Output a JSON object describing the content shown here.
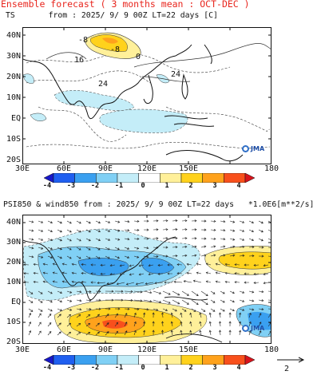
{
  "header": {
    "title": "Ensemble forecast ( 3 months mean : OCT-DEC )"
  },
  "panels": [
    {
      "title_var": "TS",
      "title_rest": "from : 2025/ 9/ 9 00Z LT=22 days  [C]",
      "y_ticks": [
        "40N",
        "30N",
        "20N",
        "10N",
        "EQ",
        "10S",
        "20S"
      ],
      "x_ticks": [
        "30E",
        "60E",
        "90E",
        "120E",
        "150E",
        "180"
      ],
      "contour_labels": [
        "-8",
        "-8",
        "16",
        "0",
        "24",
        "24"
      ],
      "logo": "JMA"
    },
    {
      "title_var": "PSI850 & wind850",
      "title_rest": "from : 2025/ 9/ 9 00Z LT=22 days",
      "units": "*1.0E6[m**2/s]",
      "y_ticks": [
        "40N",
        "30N",
        "20N",
        "10N",
        "EQ",
        "10S",
        "20S"
      ],
      "x_ticks": [
        "30E",
        "60E",
        "90E",
        "120E",
        "150E",
        "180"
      ],
      "logo": "JMA",
      "vector_ref_label": "2"
    }
  ],
  "colorbar": {
    "labels": [
      "-4",
      "-3",
      "-2",
      "-1",
      "0",
      "1",
      "2",
      "3",
      "4"
    ],
    "colors": [
      "#1818c8",
      "#1f5ff0",
      "#3aa0f0",
      "#80d0f5",
      "#c4edf8",
      "#ffffff",
      "#fff09a",
      "#ffd21c",
      "#ffa21c",
      "#f8501c",
      "#d8141c"
    ]
  },
  "chart_data": [
    {
      "type": "heatmap",
      "title": "TS from : 2025/ 9/ 9 00Z LT=22 days [C]",
      "xlim": [
        "30E",
        "180"
      ],
      "ylim": [
        "20S",
        "45N"
      ],
      "contour_levels": [
        -8,
        0,
        16,
        24
      ],
      "notes_visible": [
        "warm anomaly 1-2 over Tibetan Plateau (around 80E-95E, 30N-37N)",
        "cool anomaly 0 to -1 over central Pacific/equatorial 90E-140E"
      ]
    },
    {
      "type": "heatmap",
      "title": "PSI850 & wind850 from : 2025/ 9/ 9 00Z LT=22 days *1.0E6[m**2/s]",
      "xlim": [
        "30E",
        "180"
      ],
      "ylim": [
        "20S",
        "45N"
      ],
      "reference_vector": 2,
      "regions": [
        {
          "area": "South Asia to western Pacific, 0-30N",
          "value_range": [
            -3,
            -1
          ]
        },
        {
          "area": "western North Pacific 150E-180, 10N-20N",
          "value_range": [
            1,
            3
          ]
        },
        {
          "area": "south Indian Ocean to Australia, 20S-0",
          "value_range": [
            1,
            4
          ]
        },
        {
          "area": "south-west Pacific 160E-180, 10S-20S",
          "value_range": [
            -2,
            -1
          ]
        }
      ]
    }
  ]
}
